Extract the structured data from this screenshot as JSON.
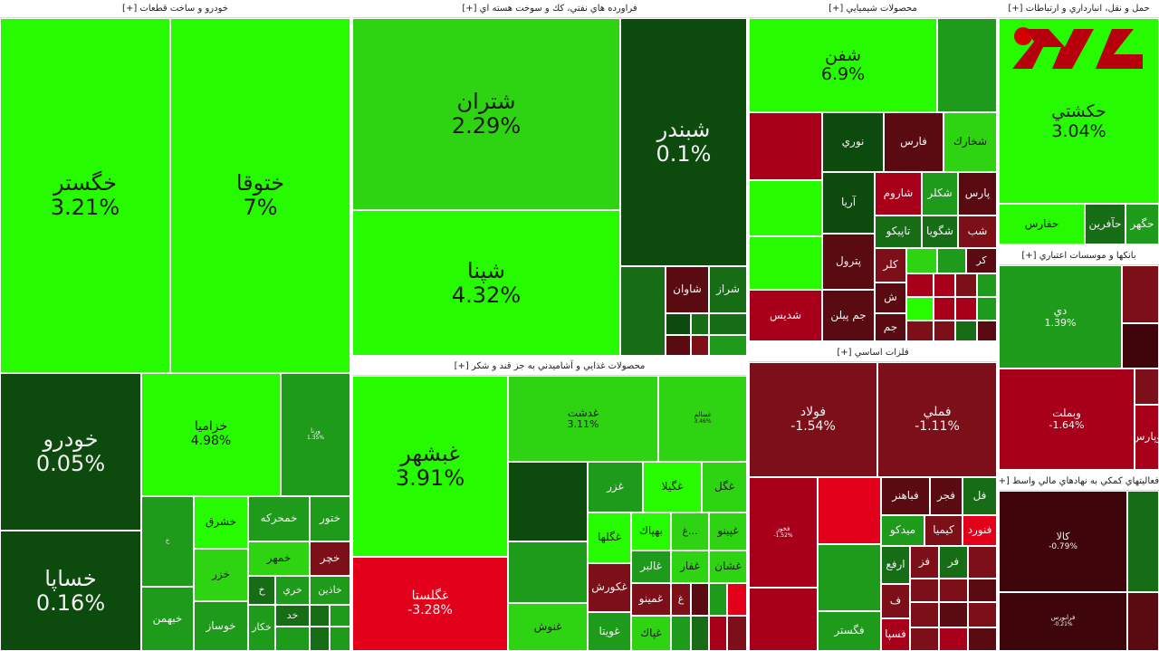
{
  "sections": {
    "auto": "خودرو و ساخت قطعات [+]",
    "oil": "فراورده هاي نفتي، كك و سوخت هسته اي [+]",
    "chem": "محصولات شيميايي [+]",
    "telecom": "حمل و نقل، انبارداري و ارتباطات [+]",
    "food": "محصولات غذايي و آشاميدني به جز قند و شكر [+]",
    "metal": "فلزات اساسي [+]",
    "bank": "بانكها و موسسات اعتباري [+]",
    "fin": "فعاليتهاي كمكي به نهادهاي مالي واسط [+]"
  },
  "tiles": {
    "khgostar": {
      "n": "خگستر",
      "p": "3.21%"
    },
    "khotoga": {
      "n": "ختوقا",
      "p": "7%"
    },
    "khodro": {
      "n": "خودرو",
      "p": "0.05%"
    },
    "khsapa": {
      "n": "خساپا",
      "p": "0.16%"
    },
    "khzamia": {
      "n": "خزاميا",
      "p": "4.98%"
    },
    "vorna": {
      "n": "ورنا",
      "p": "1.35%"
    },
    "khsharg": {
      "n": "خشرق"
    },
    "khmehrkeh": {
      "n": "خمحركه"
    },
    "khtoor": {
      "n": "ختور"
    },
    "khmahr": {
      "n": "خمهر"
    },
    "khchar": {
      "n": "خچر"
    },
    "khzar": {
      "n": "خزر"
    },
    "khazin": {
      "n": "خاذين"
    },
    "khbahman": {
      "n": "خبهمن"
    },
    "khsaz": {
      "n": "خوساز"
    },
    "khkar": {
      "n": "خكار"
    },
    "khri": {
      "n": "خري"
    },
    "khd": {
      "n": "خد"
    },
    "kh1": {
      "n": "خ"
    },
    "kh2": {
      "n": "خ"
    },
    "shtaran": {
      "n": "شتران",
      "p": "2.29%"
    },
    "shbandar": {
      "n": "شبندر",
      "p": "0.1%"
    },
    "shpna": {
      "n": "شپنا",
      "p": "4.32%"
    },
    "shavan": {
      "n": "شاوان"
    },
    "shraz": {
      "n": "شراز"
    },
    "shfan": {
      "n": "شفن",
      "p": "6.9%"
    },
    "nouri": {
      "n": "نوري"
    },
    "fars": {
      "n": "فارس"
    },
    "shkharak": {
      "n": "شخارك"
    },
    "arya": {
      "n": "آريا"
    },
    "sharoom": {
      "n": "شاروم"
    },
    "shekar": {
      "n": "شكلر"
    },
    "pars": {
      "n": "پارس"
    },
    "tapiko": {
      "n": "تاپيكو"
    },
    "shgooya": {
      "n": "شگويا"
    },
    "shb": {
      "n": "شب"
    },
    "patrol": {
      "n": "پترول"
    },
    "kalr": {
      "n": "كلر"
    },
    "kr": {
      "n": "كر"
    },
    "shdis": {
      "n": "شديس"
    },
    "jampilen": {
      "n": "جم پيلن"
    },
    "jam": {
      "n": "جم"
    },
    "sh1": {
      "n": "ش"
    },
    "hkashti": {
      "n": "حكشتي",
      "p": "3.04%"
    },
    "hafaris": {
      "n": "حفارس"
    },
    "hafarin": {
      "n": "حآفرين"
    },
    "hghahr": {
      "n": "حگهر"
    },
    "ghbshahr": {
      "n": "غبشهر",
      "p": "3.91%"
    },
    "ghdasht": {
      "n": "غدشت",
      "p": "3.11%"
    },
    "ghsalem": {
      "n": "غسالم",
      "p": "3.46%"
    },
    "ghglsta": {
      "n": "غگلستا",
      "p": "-3.28%"
    },
    "ghzar": {
      "n": "غزر"
    },
    "ghgila": {
      "n": "غگيلا"
    },
    "ghgl": {
      "n": "غگل"
    },
    "ghgha": {
      "n": "غگلها"
    },
    "bhpak": {
      "n": "بهپاك"
    },
    "ghpino": {
      "n": "غپينو"
    },
    "ghalbir": {
      "n": "غالبر"
    },
    "ghfar": {
      "n": "غفار"
    },
    "ghshan": {
      "n": "غشان"
    },
    "ghkoorsh": {
      "n": "غكورش"
    },
    "ghmino": {
      "n": "غمينو"
    },
    "ghnosh": {
      "n": "غنوش"
    },
    "ghvita": {
      "n": "غويتا"
    },
    "ghpak": {
      "n": "غپاك"
    },
    "fooladd": {
      "n": "فولاد",
      "p": "-1.54%"
    },
    "fmelli": {
      "n": "فملي",
      "p": "-1.11%"
    },
    "fajr": {
      "n": "فجر"
    },
    "fbahonar": {
      "n": "فباهنر"
    },
    "fl": {
      "n": "فل"
    },
    "midko": {
      "n": "ميدكو"
    },
    "kimia": {
      "n": "كيميا"
    },
    "fnoord": {
      "n": "فنورد"
    },
    "arfa": {
      "n": "ارفع"
    },
    "fz": {
      "n": "فز"
    },
    "fr": {
      "n": "فر"
    },
    "fgostar": {
      "n": "فگستر"
    },
    "fsapa": {
      "n": "فسپا"
    },
    "ff": {
      "n": "ف"
    },
    "fkhooz": {
      "n": "فخوز",
      "p": "-1.52%"
    },
    "di": {
      "n": "دي",
      "p": "1.39%"
    },
    "vbmellat": {
      "n": "وبملت",
      "p": "-1.64%"
    },
    "vpars": {
      "n": "وپارس"
    },
    "kala": {
      "n": "كالا",
      "p": "-0.79%"
    },
    "farabors": {
      "n": "فرابورس",
      "p": "-0.21%"
    }
  }
}
